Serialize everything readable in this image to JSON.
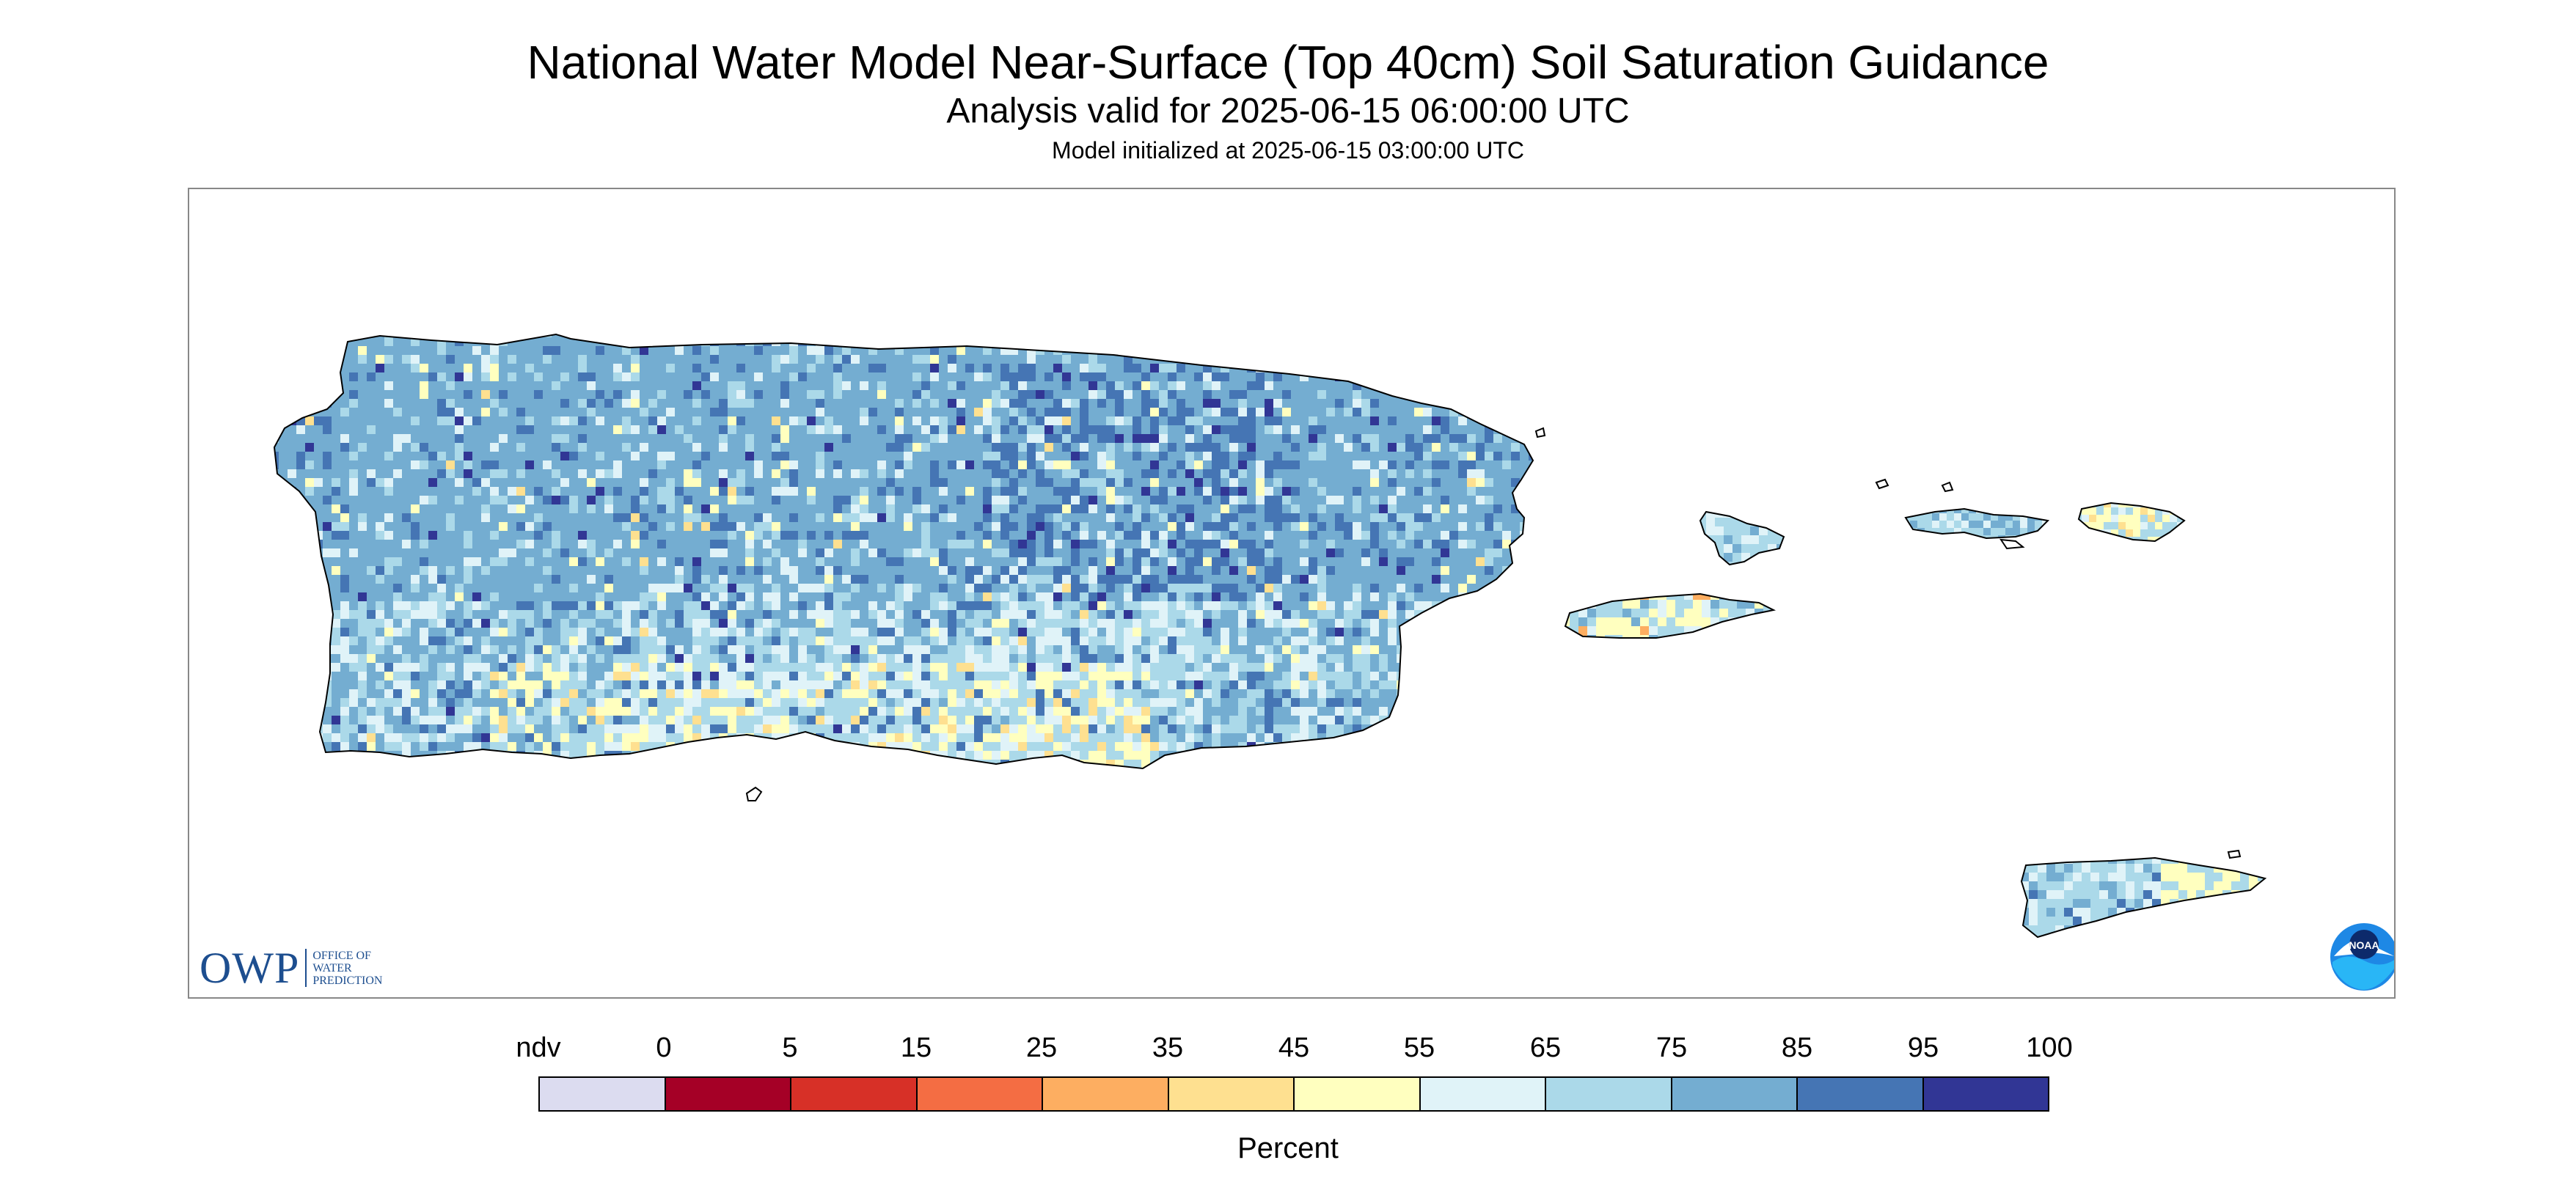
{
  "title": "National Water Model Near-Surface (Top 40cm) Soil Saturation Guidance",
  "subtitle": "Analysis valid for 2025-06-15 06:00:00 UTC",
  "initialized": "Model initialized at 2025-06-15 03:00:00 UTC",
  "logos": {
    "owp_mark": "OWP",
    "owp_text": [
      "OFFICE OF",
      "WATER",
      "PREDICTION"
    ],
    "noaa_text": "NOAA"
  },
  "legend": {
    "units_label": "Percent",
    "tick_labels": [
      "ndv",
      "0",
      "5",
      "15",
      "25",
      "35",
      "45",
      "55",
      "65",
      "75",
      "85",
      "95",
      "100"
    ],
    "bins": [
      {
        "label": "ndv",
        "color": "#dcdcf0"
      },
      {
        "range": "0-5",
        "color": "#a50026"
      },
      {
        "range": "5-15",
        "color": "#d73027"
      },
      {
        "range": "15-25",
        "color": "#f46d43"
      },
      {
        "range": "25-35",
        "color": "#fdae61"
      },
      {
        "range": "35-45",
        "color": "#fee090"
      },
      {
        "range": "45-55",
        "color": "#ffffbf"
      },
      {
        "range": "55-65",
        "color": "#e0f3f8"
      },
      {
        "range": "65-75",
        "color": "#abd9e9"
      },
      {
        "range": "75-85",
        "color": "#74add1"
      },
      {
        "range": "85-95",
        "color": "#4575b4"
      },
      {
        "range": "95-100",
        "color": "#313695"
      }
    ]
  },
  "map": {
    "region": "Puerto Rico and U.S. Virgin Islands",
    "dominant_class": "75-85",
    "coastline_color": "#000000"
  }
}
